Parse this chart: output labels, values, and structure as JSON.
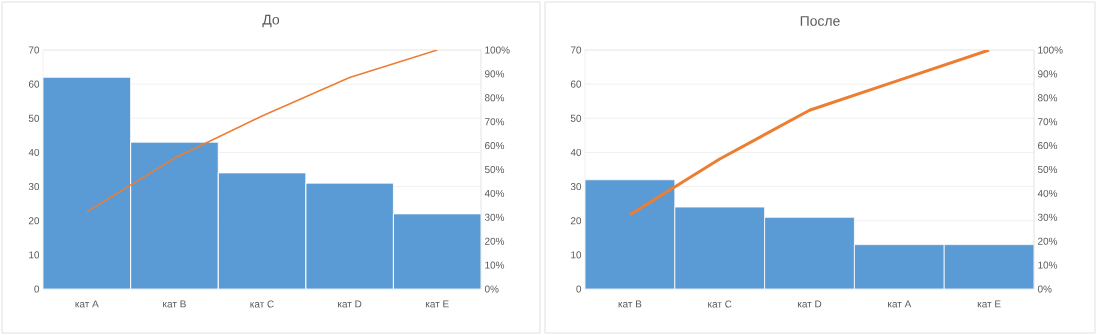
{
  "chart_data": [
    {
      "type": "bar",
      "title": "До",
      "categories": [
        "кат A",
        "кат B",
        "кат C",
        "кат D",
        "кат E"
      ],
      "series": [
        {
          "color": "#5b9bd5",
          "values": [
            62,
            43,
            34,
            31,
            22
          ]
        },
        {
          "type": "line",
          "axis": "y2",
          "color": "#ed7d31",
          "values": [
            32.3,
            54.7,
            72.4,
            88.5,
            100
          ]
        }
      ],
      "ylim": [
        0,
        70
      ],
      "yticks": [
        0,
        10,
        20,
        30,
        40,
        50,
        60,
        70
      ],
      "y2lim": [
        0,
        100
      ],
      "y2ticks": [
        {
          "value": 0,
          "label": "0%"
        },
        {
          "value": 10,
          "label": "10%"
        },
        {
          "value": 20,
          "label": "20%"
        },
        {
          "value": 30,
          "label": "30%"
        },
        {
          "value": 40,
          "label": "40%"
        },
        {
          "value": 50,
          "label": "50%"
        },
        {
          "value": 60,
          "label": "60%"
        },
        {
          "value": 70,
          "label": "70%"
        },
        {
          "value": 80,
          "label": "80%"
        },
        {
          "value": 90,
          "label": "90%"
        },
        {
          "value": 100,
          "label": "100%"
        }
      ],
      "grid": "y"
    },
    {
      "type": "bar",
      "title": "После",
      "categories": [
        "кат B",
        "кат C",
        "кат D",
        "кат A",
        "кат E"
      ],
      "series": [
        {
          "color": "#5b9bd5",
          "values": [
            32,
            24,
            21,
            13,
            13
          ]
        },
        {
          "type": "line",
          "axis": "y2",
          "color": "#ed7d31",
          "values": [
            31.1,
            54.4,
            74.8,
            87.4,
            100
          ]
        }
      ],
      "ylim": [
        0,
        70
      ],
      "yticks": [
        0,
        10,
        20,
        30,
        40,
        50,
        60,
        70
      ],
      "y2lim": [
        0,
        100
      ],
      "y2ticks": [
        {
          "value": 0,
          "label": "0%"
        },
        {
          "value": 10,
          "label": "10%"
        },
        {
          "value": 20,
          "label": "20%"
        },
        {
          "value": 30,
          "label": "30%"
        },
        {
          "value": 40,
          "label": "40%"
        },
        {
          "value": 50,
          "label": "50%"
        },
        {
          "value": 60,
          "label": "60%"
        },
        {
          "value": 70,
          "label": "70%"
        },
        {
          "value": 80,
          "label": "80%"
        },
        {
          "value": 90,
          "label": "90%"
        },
        {
          "value": 100,
          "label": "100%"
        }
      ],
      "grid": "y"
    }
  ]
}
